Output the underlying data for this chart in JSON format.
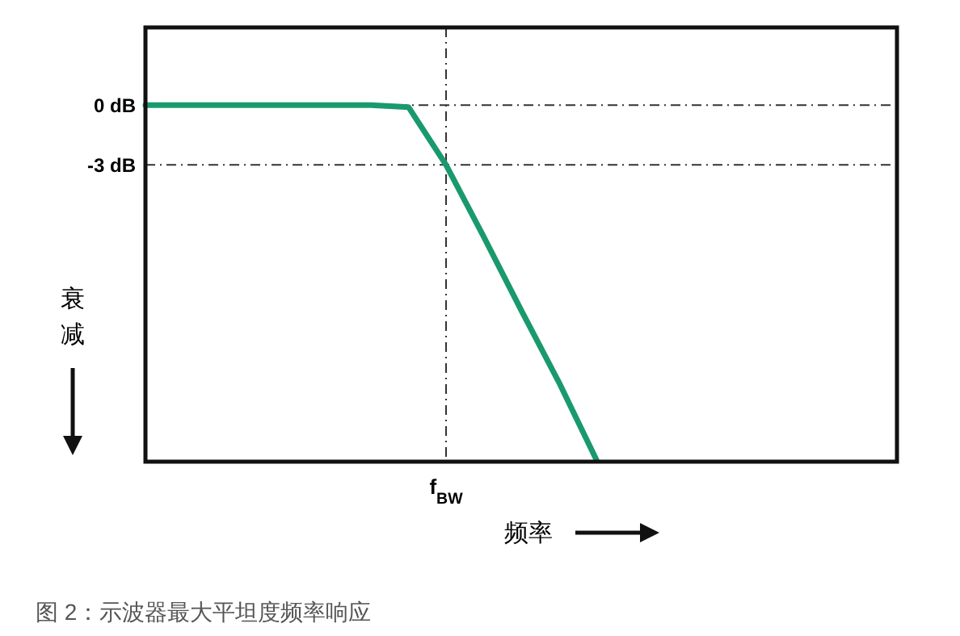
{
  "chart_data": {
    "type": "line",
    "xlabel": "频率",
    "ylabel": "衰减",
    "categories": [
      null,
      null,
      null,
      null,
      null,
      null,
      null,
      null,
      "f$_{BW}$",
      null,
      null,
      null,
      null,
      null,
      null,
      null,
      null,
      null,
      null,
      null,
      null
    ],
    "series": [
      {
        "color": "#1a9a6c",
        "values": [
          0,
          0,
          0,
          0,
          0,
          0,
          0,
          -0.1,
          -3,
          -6.6,
          -10.3,
          -13.9,
          -17.8,
          null,
          null,
          null,
          null,
          null,
          null,
          null,
          null
        ]
      }
    ],
    "ylim": [
      -17.9,
      3.9
    ],
    "yticks": [
      {
        "value": 0,
        "label": "0 dB"
      },
      {
        "value": -3,
        "label": "-3 dB"
      }
    ],
    "grid": false,
    "marker": "none",
    "ref_lines": [
      {
        "axis": "y",
        "value": 0,
        "line_style": "dashed"
      },
      {
        "axis": "y",
        "value": -3,
        "line_style": "dashed"
      },
      {
        "axis": "x",
        "value": "f$_{BW}$",
        "line_style": "dashed"
      }
    ],
    "annotations": [
      "图 2：示波器最大平坦度频率响应"
    ]
  }
}
